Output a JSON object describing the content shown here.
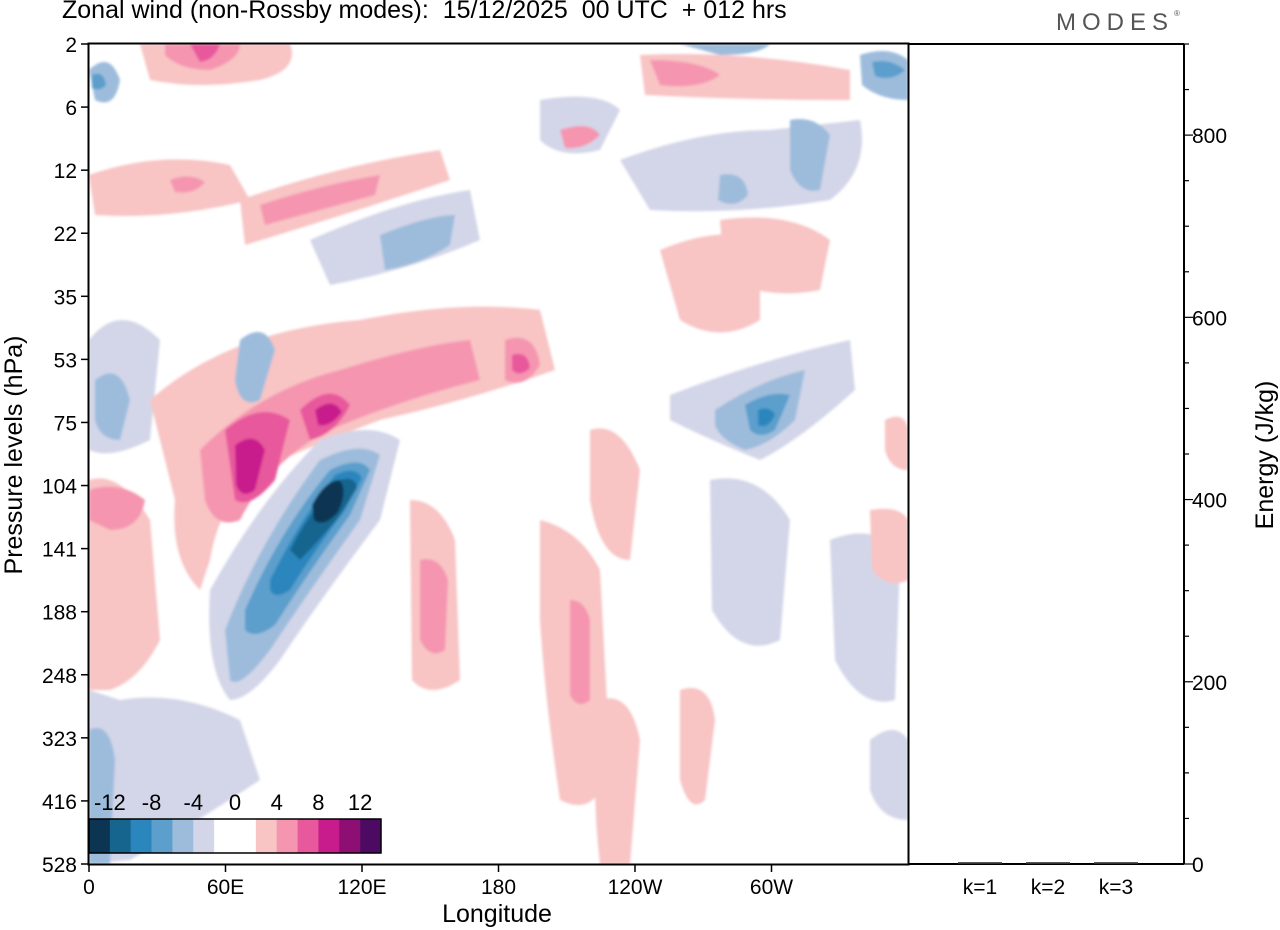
{
  "header": {
    "title": "Zonal wind (non-Rossby modes):  15/12/2025  00 UTC  + 012 hrs",
    "logo": "MODES",
    "logo_mark": "®"
  },
  "chart_data": [
    {
      "type": "heatmap",
      "title": "Zonal wind (non-Rossby modes)",
      "xlabel": "Longitude",
      "ylabel": "Pressure levels (hPa)",
      "x_ticks": [
        "0",
        "60E",
        "120E",
        "180",
        "120W",
        "60W"
      ],
      "x_tick_degrees": [
        0,
        60,
        120,
        180,
        240,
        300
      ],
      "x_range_degrees": [
        0,
        360
      ],
      "y_ticks": [
        "2",
        "6",
        "12",
        "22",
        "35",
        "53",
        "75",
        "104",
        "141",
        "188",
        "248",
        "323",
        "416",
        "528"
      ],
      "colorbar": {
        "labels": [
          "-12",
          "-8",
          "-4",
          "0",
          "4",
          "8",
          "12"
        ],
        "colors": [
          "#0b3553",
          "#16658e",
          "#2a86bd",
          "#5c9fcc",
          "#9dbcdc",
          "#d3d6e8",
          "#ffffff",
          "#ffffff",
          "#f8c4c4",
          "#f595b0",
          "#e8589c",
          "#c81c8c",
          "#8e0f73",
          "#4d0a63"
        ]
      }
    },
    {
      "type": "bar",
      "ylabel": "Energy (J/kg)",
      "categories": [
        "k=1",
        "k=2",
        "k=3"
      ],
      "values": [
        2,
        2,
        2
      ],
      "ylim": [
        0,
        900
      ],
      "y_ticks": [
        "0",
        "200",
        "400",
        "600",
        "800"
      ],
      "y_tick_values": [
        0,
        200,
        400,
        600,
        800
      ]
    }
  ]
}
